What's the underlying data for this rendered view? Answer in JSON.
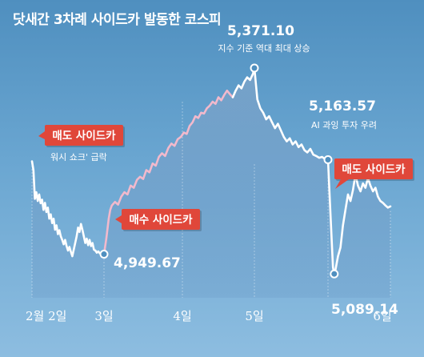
{
  "title": "닷새간 3차례 사이드카 발동한 코스피",
  "chart_data": {
    "type": "line",
    "title": "닷새간 3차례 사이드카 발동한 코스피",
    "x_ticks": [
      "2월 2일",
      "3일",
      "4일",
      "5일",
      "6일"
    ],
    "ylim": [
      4880,
      5420
    ],
    "colors": {
      "line_normal": "#ffffff",
      "line_rising": "#f2b9cc",
      "label_box": "#e0473a"
    },
    "series": [
      {
        "segment": "2월 2일",
        "color": "line_normal",
        "points": [
          [
            0.0,
            5160
          ],
          [
            0.02,
            5140
          ],
          [
            0.04,
            5075
          ],
          [
            0.06,
            5090
          ],
          [
            0.08,
            5070
          ],
          [
            0.1,
            5085
          ],
          [
            0.12,
            5065
          ],
          [
            0.14,
            5073
          ],
          [
            0.16,
            5050
          ],
          [
            0.18,
            5066
          ],
          [
            0.2,
            5045
          ],
          [
            0.22,
            5055
          ],
          [
            0.24,
            5030
          ],
          [
            0.26,
            5040
          ],
          [
            0.28,
            5020
          ],
          [
            0.3,
            5030
          ],
          [
            0.32,
            5005
          ],
          [
            0.34,
            5015
          ],
          [
            0.36,
            4995
          ],
          [
            0.38,
            5004
          ],
          [
            0.4,
            4990
          ],
          [
            0.42,
            4982
          ],
          [
            0.44,
            4972
          ],
          [
            0.46,
            4982
          ],
          [
            0.48,
            4968
          ],
          [
            0.5,
            4958
          ],
          [
            0.52,
            4966
          ],
          [
            0.54,
            4955
          ],
          [
            0.56,
            4945
          ],
          [
            0.58,
            4960
          ],
          [
            0.6,
            4975
          ],
          [
            0.62,
            4990
          ],
          [
            0.64,
            5010
          ],
          [
            0.66,
            5000
          ],
          [
            0.68,
            5018
          ],
          [
            0.7,
            5005
          ],
          [
            0.72,
            4990
          ],
          [
            0.74,
            4975
          ],
          [
            0.76,
            4985
          ],
          [
            0.78,
            4970
          ],
          [
            0.8,
            4982
          ],
          [
            0.82,
            4968
          ],
          [
            0.84,
            4975
          ],
          [
            0.86,
            4960
          ],
          [
            0.88,
            4958
          ],
          [
            0.9,
            4953
          ],
          [
            0.92,
            4956
          ],
          [
            0.94,
            4952
          ],
          [
            0.96,
            4950
          ],
          [
            1.0,
            4949.67
          ]
        ]
      },
      {
        "segment": "3일",
        "color": "line_rising",
        "points": [
          [
            1.0,
            4949.67
          ],
          [
            1.03,
            4985
          ],
          [
            1.06,
            5030
          ],
          [
            1.08,
            5050
          ],
          [
            1.1,
            5060
          ],
          [
            1.14,
            5068
          ],
          [
            1.18,
            5062
          ],
          [
            1.22,
            5080
          ],
          [
            1.26,
            5090
          ],
          [
            1.3,
            5085
          ],
          [
            1.34,
            5105
          ],
          [
            1.38,
            5100
          ],
          [
            1.42,
            5118
          ],
          [
            1.46,
            5125
          ],
          [
            1.5,
            5120
          ],
          [
            1.54,
            5140
          ],
          [
            1.58,
            5135
          ],
          [
            1.62,
            5155
          ],
          [
            1.66,
            5150
          ],
          [
            1.7,
            5170
          ],
          [
            1.74,
            5178
          ],
          [
            1.78,
            5172
          ],
          [
            1.82,
            5190
          ],
          [
            1.86,
            5200
          ],
          [
            1.9,
            5195
          ],
          [
            1.94,
            5210
          ],
          [
            1.98,
            5215
          ],
          [
            2.02,
            5225
          ],
          [
            2.06,
            5222
          ],
          [
            2.1,
            5240
          ],
          [
            2.14,
            5248
          ],
          [
            2.18,
            5262
          ],
          [
            2.22,
            5258
          ],
          [
            2.26,
            5270
          ],
          [
            2.3,
            5268
          ],
          [
            2.34,
            5280
          ],
          [
            2.38,
            5286
          ],
          [
            2.42,
            5295
          ],
          [
            2.46,
            5290
          ],
          [
            2.5,
            5305
          ],
          [
            2.54,
            5298
          ],
          [
            2.58,
            5310
          ],
          [
            2.62,
            5320
          ],
          [
            2.66,
            5312
          ],
          [
            2.7,
            5305
          ]
        ]
      },
      {
        "segment": "4일",
        "color": "line_normal",
        "points": [
          [
            2.7,
            5305
          ],
          [
            2.74,
            5320
          ],
          [
            2.78,
            5332
          ],
          [
            2.82,
            5325
          ],
          [
            2.86,
            5340
          ],
          [
            2.9,
            5350
          ],
          [
            2.94,
            5344
          ],
          [
            2.98,
            5358
          ],
          [
            3.0,
            5371.1
          ],
          [
            3.04,
            5300
          ],
          [
            3.08,
            5280
          ],
          [
            3.12,
            5270
          ],
          [
            3.16,
            5255
          ],
          [
            3.2,
            5262
          ],
          [
            3.24,
            5248
          ],
          [
            3.28,
            5235
          ],
          [
            3.32,
            5245
          ],
          [
            3.36,
            5230
          ],
          [
            3.4,
            5215
          ],
          [
            3.44,
            5205
          ],
          [
            3.48,
            5212
          ],
          [
            3.52,
            5198
          ],
          [
            3.56,
            5205
          ],
          [
            3.6,
            5192
          ],
          [
            3.64,
            5198
          ],
          [
            3.68,
            5185
          ],
          [
            3.72,
            5180
          ],
          [
            3.76,
            5188
          ],
          [
            3.8,
            5175
          ],
          [
            3.84,
            5172
          ],
          [
            3.88,
            5168
          ],
          [
            3.92,
            5170
          ],
          [
            3.96,
            5165
          ],
          [
            4.0,
            5163.57
          ]
        ]
      },
      {
        "segment": "5일",
        "color": "line_normal",
        "points": [
          [
            4.0,
            5163.57
          ],
          [
            4.04,
            5040
          ],
          [
            4.08,
            4920
          ],
          [
            4.1,
            4905
          ],
          [
            4.12,
            4915
          ],
          [
            4.16,
            4945
          ],
          [
            4.2,
            4965
          ],
          [
            4.24,
            5015
          ],
          [
            4.28,
            5050
          ],
          [
            4.32,
            5085
          ],
          [
            4.36,
            5070
          ],
          [
            4.4,
            5095
          ],
          [
            4.44,
            5130
          ],
          [
            4.48,
            5105
          ],
          [
            4.52,
            5092
          ],
          [
            4.56,
            5110
          ],
          [
            4.6,
            5100
          ],
          [
            4.64,
            5122
          ],
          [
            4.68,
            5105
          ],
          [
            4.72,
            5092
          ],
          [
            4.76,
            5100
          ],
          [
            4.8,
            5080
          ],
          [
            4.84,
            5070
          ],
          [
            4.88,
            5066
          ],
          [
            4.92,
            5060
          ],
          [
            4.96,
            5055
          ],
          [
            5.0,
            5058
          ]
        ]
      }
    ],
    "annotations": [
      {
        "kind": "label",
        "text": "매도 사이드카",
        "sub": "워시 쇼크' 급락"
      },
      {
        "kind": "label",
        "text": "매수 사이드카"
      },
      {
        "kind": "label",
        "text": "매도 사이드카"
      },
      {
        "kind": "value",
        "text": "4,949.67"
      },
      {
        "kind": "value",
        "text": "5,371.10",
        "sub": "지수 기준 역대 최대 상승"
      },
      {
        "kind": "value",
        "text": "5,163.57",
        "sub": "AI 과잉 투자 우려"
      },
      {
        "kind": "value",
        "text": "5,089.14"
      }
    ]
  }
}
